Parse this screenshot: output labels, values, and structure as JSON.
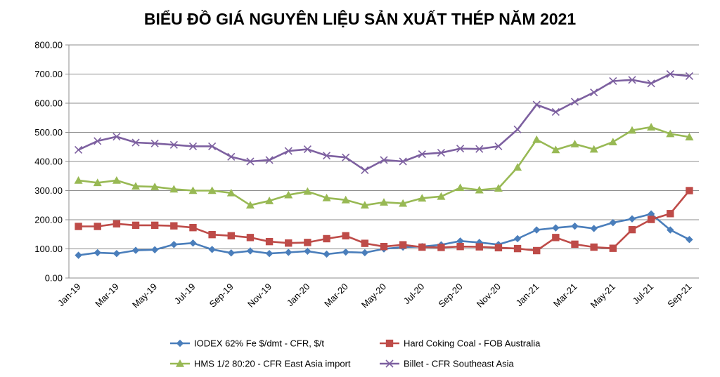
{
  "chart_data": {
    "type": "line",
    "title": "BIỂU ĐỒ GIÁ NGUYÊN LIỆU SẢN XUẤT THÉP NĂM 2021",
    "xlabel": "",
    "ylabel": "",
    "ylim": [
      0,
      800
    ],
    "y_ticks": [
      "0.00",
      "100.00",
      "200.00",
      "300.00",
      "400.00",
      "500.00",
      "600.00",
      "700.00",
      "800.00"
    ],
    "y_tick_values": [
      0,
      100,
      200,
      300,
      400,
      500,
      600,
      700,
      800
    ],
    "grid": true,
    "legend": "bottom",
    "categories": [
      "Jan-19",
      "Feb-19",
      "Mar-19",
      "Apr-19",
      "May-19",
      "Jun-19",
      "Jul-19",
      "Aug-19",
      "Sep-19",
      "Oct-19",
      "Nov-19",
      "Dec-19",
      "Jan-20",
      "Feb-20",
      "Mar-20",
      "Apr-20",
      "May-20",
      "Jun-20",
      "Jul-20",
      "Aug-20",
      "Sep-20",
      "Oct-20",
      "Nov-20",
      "Dec-20",
      "Jan-21",
      "Feb-21",
      "Mar-21",
      "Apr-21",
      "May-21",
      "Jun-21",
      "Jul-21",
      "Aug-21",
      "Sep-21"
    ],
    "x_tick_labels": [
      "Jan-19",
      "Mar-19",
      "May-19",
      "Jul-19",
      "Sep-19",
      "Nov-19",
      "Jan-20",
      "Mar-20",
      "May-20",
      "Jul-20",
      "Sep-20",
      "Nov-20",
      "Jan-21",
      "Mar-21",
      "May-21",
      "Jul-21",
      "Sep-21"
    ],
    "series": [
      {
        "name": "IODEX 62% Fe $/dmt - CFR, $/t",
        "color": "#4a7ebb",
        "marker": "diamond",
        "values": [
          78,
          87,
          84,
          95,
          97,
          115,
          120,
          98,
          86,
          93,
          84,
          88,
          92,
          82,
          89,
          87,
          100,
          106,
          108,
          114,
          127,
          122,
          115,
          135,
          165,
          172,
          178,
          170,
          190,
          203,
          220,
          165,
          132
        ]
      },
      {
        "name": "Hard Coking Coal - FOB Australia",
        "color": "#be4b48",
        "marker": "square",
        "values": [
          177,
          177,
          186,
          181,
          181,
          179,
          173,
          149,
          145,
          139,
          125,
          120,
          122,
          135,
          145,
          119,
          108,
          114,
          106,
          105,
          108,
          107,
          104,
          101,
          94,
          139,
          116,
          106,
          102,
          166,
          201,
          221,
          300
        ]
      },
      {
        "name": "HMS 1/2 80:20 - CFR East Asia import",
        "color": "#98b954",
        "marker": "triangle",
        "values": [
          335,
          327,
          335,
          315,
          313,
          305,
          300,
          300,
          292,
          250,
          265,
          285,
          297,
          275,
          268,
          250,
          260,
          256,
          274,
          280,
          310,
          302,
          308,
          380,
          475,
          440,
          460,
          442,
          467,
          507,
          518,
          495,
          484
        ]
      },
      {
        "name": "Billet - CFR Southeast Asia",
        "color": "#7d60a0",
        "marker": "x",
        "values": [
          440,
          470,
          485,
          465,
          462,
          457,
          452,
          452,
          416,
          400,
          405,
          436,
          442,
          420,
          414,
          370,
          405,
          400,
          425,
          430,
          444,
          443,
          452,
          510,
          595,
          570,
          605,
          637,
          676,
          680,
          668,
          700,
          693
        ]
      }
    ]
  }
}
